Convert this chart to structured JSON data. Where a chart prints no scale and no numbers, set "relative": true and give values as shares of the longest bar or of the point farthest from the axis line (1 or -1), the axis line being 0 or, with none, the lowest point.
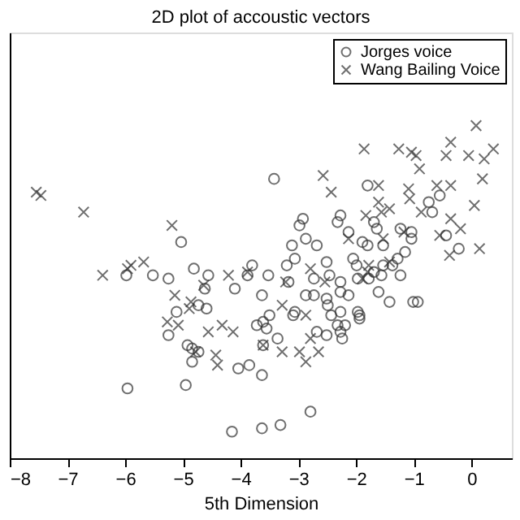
{
  "chart_data": {
    "type": "scatter",
    "title": "2D plot of accoustic vectors",
    "xlabel": "5th Dimension",
    "relative": true,
    "xlim": [
      -8,
      0.7
    ],
    "xticks": [
      -8,
      -7,
      -6,
      -5,
      -4,
      -3,
      -2,
      -1,
      0
    ],
    "grid": false,
    "legend": "top right",
    "tick_labels": "x",
    "series": [
      {
        "name": "Jorges voice",
        "color": "#333333",
        "marker": "circle",
        "x": [
          -3.42,
          -5.03,
          -5.98,
          -5.52,
          -5.25,
          -4.81,
          -4.56,
          -4.62,
          -4.1,
          -3.8,
          -3.88,
          -3.52,
          -3.63,
          -5.11,
          -4.73,
          -4.59,
          -3.5,
          -3.61,
          -3.72,
          -1.8,
          -0.55,
          -0.74,
          -0.68,
          -2.27,
          -2.92,
          -2.98,
          -2.32,
          -1.69,
          -1.64,
          -1.23,
          -1.04,
          -0.44,
          -2.13,
          -2.68,
          -2.87,
          -3.11,
          -1.89,
          -1.8,
          -1.53,
          -1.04,
          -0.22,
          -1.15,
          -1.28,
          -1.37,
          -1.23,
          -1.53,
          -1.56,
          -1.69,
          -2.05,
          -1.99,
          -2.51,
          -2.46,
          -2.73,
          -3.06,
          -3.2,
          -3.17,
          -2.27,
          -1.78,
          -1.97,
          -2.27,
          -2.13,
          -1.61,
          -1.01,
          -2.51,
          -2.87,
          -2.73,
          -3.06,
          -2.49,
          -2.43,
          -1.97,
          -1.94,
          -2.32,
          -5.25,
          -4.92,
          -4.84,
          -4.73,
          -4.84,
          -4.04,
          -3.85,
          -3.63,
          -3.61,
          -5.96,
          -4.95,
          -4.15,
          -3.63,
          -3.55,
          -3.36,
          -3.09,
          -2.27,
          -2.68,
          -2.51,
          -2.27,
          -2.19,
          -2.24,
          -1.94,
          -1.42,
          -0.93,
          -2.79,
          -3.31
        ],
        "values": [
          0.84,
          0.65,
          0.55,
          0.55,
          0.54,
          0.57,
          0.55,
          0.51,
          0.51,
          0.58,
          0.55,
          0.55,
          0.49,
          0.44,
          0.46,
          0.45,
          0.43,
          0.41,
          0.4,
          0.82,
          0.79,
          0.77,
          0.74,
          0.73,
          0.72,
          0.7,
          0.71,
          0.71,
          0.69,
          0.69,
          0.68,
          0.67,
          0.68,
          0.64,
          0.66,
          0.64,
          0.65,
          0.64,
          0.64,
          0.66,
          0.63,
          0.62,
          0.6,
          0.58,
          0.55,
          0.58,
          0.55,
          0.56,
          0.6,
          0.58,
          0.59,
          0.55,
          0.54,
          0.6,
          0.58,
          0.53,
          0.53,
          0.54,
          0.54,
          0.5,
          0.49,
          0.5,
          0.47,
          0.48,
          0.49,
          0.49,
          0.44,
          0.46,
          0.43,
          0.44,
          0.42,
          0.4,
          0.37,
          0.34,
          0.33,
          0.32,
          0.29,
          0.27,
          0.28,
          0.25,
          0.34,
          0.21,
          0.22,
          0.08,
          0.09,
          0.39,
          0.36,
          0.43,
          0.44,
          0.38,
          0.37,
          0.38,
          0.4,
          0.36,
          0.43,
          0.47,
          0.47,
          0.14,
          0.1
        ]
      },
      {
        "name": "Wang Bailing Voice",
        "color": "#333333",
        "marker": "cross",
        "x": [
          -7.54,
          -7.46,
          -6.72,
          -5.19,
          -6.39,
          -5.9,
          -5.96,
          -5.68,
          -5.14,
          -4.86,
          -5.27,
          -5.08,
          -4.32,
          -4.21,
          -3.88,
          -4.64,
          0.08,
          -0.36,
          -1.86,
          -1.26,
          -1.04,
          -0.96,
          -0.44,
          -0.05,
          0.22,
          0.38,
          -0.9,
          -2.57,
          -1.61,
          0.19,
          -2.43,
          -1.09,
          -1.07,
          -0.6,
          -0.36,
          -1.61,
          -1.56,
          -1.42,
          -0.87,
          -1.83,
          0.05,
          -0.36,
          -0.19,
          -0.55,
          0.14,
          -0.38,
          -1.17,
          -2.13,
          -1.53,
          -2.79,
          -1.78,
          -1.42,
          -2.54,
          -1.89,
          -3.22,
          -3.28,
          -2.87,
          -1.8,
          -4.56,
          -4.13,
          -4.89,
          -4.43,
          -4.4,
          -4.78,
          -3.61,
          -2.79,
          -3.28,
          -2.98,
          -2.87,
          -2.65
        ],
        "values": [
          0.8,
          0.79,
          0.74,
          0.7,
          0.55,
          0.58,
          0.57,
          0.59,
          0.49,
          0.47,
          0.41,
          0.4,
          0.4,
          0.55,
          0.56,
          0.52,
          1.0,
          0.95,
          0.93,
          0.93,
          0.92,
          0.91,
          0.91,
          0.91,
          0.9,
          0.93,
          0.87,
          0.85,
          0.82,
          0.84,
          0.8,
          0.81,
          0.78,
          0.82,
          0.82,
          0.77,
          0.74,
          0.75,
          0.74,
          0.73,
          0.76,
          0.72,
          0.69,
          0.67,
          0.63,
          0.61,
          0.68,
          0.66,
          0.66,
          0.57,
          0.58,
          0.59,
          0.53,
          0.54,
          0.53,
          0.46,
          0.43,
          0.56,
          0.38,
          0.38,
          0.45,
          0.31,
          0.28,
          0.32,
          0.34,
          0.36,
          0.32,
          0.32,
          0.29,
          0.32
        ]
      }
    ]
  }
}
